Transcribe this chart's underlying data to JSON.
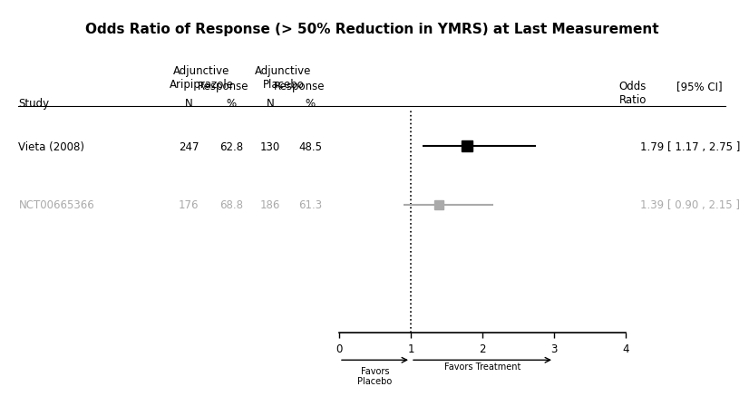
{
  "title": "Odds Ratio of Response (> 50% Reduction in YMRS) at Last Measurement",
  "studies": [
    {
      "name": "Vieta (2008)",
      "n_treat": 247,
      "pct_treat": "62.8",
      "n_ctrl": 130,
      "pct_ctrl": "48.5",
      "or": 1.79,
      "ci_low": 1.17,
      "ci_high": 2.75,
      "or_text": "1.79 [ 1.17 , 2.75 ]",
      "color": "#000000",
      "row": 1
    },
    {
      "name": "NCT00665366",
      "n_treat": 176,
      "pct_treat": "68.8",
      "n_ctrl": 186,
      "pct_ctrl": "61.3",
      "or": 1.39,
      "ci_low": 0.9,
      "ci_high": 2.15,
      "or_text": "1.39 [ 0.90 , 2.15 ]",
      "color": "#aaaaaa",
      "row": 2
    }
  ],
  "x_min": 0,
  "x_max": 4,
  "x_ticks": [
    0,
    1,
    2,
    3,
    4
  ],
  "vline_x": 1.0,
  "favors_placebo": "Favors\nPlacebo",
  "favors_treatment": "Favors Treatment",
  "background_color": "#ffffff",
  "title_fontsize": 11,
  "body_fontsize": 8.5
}
